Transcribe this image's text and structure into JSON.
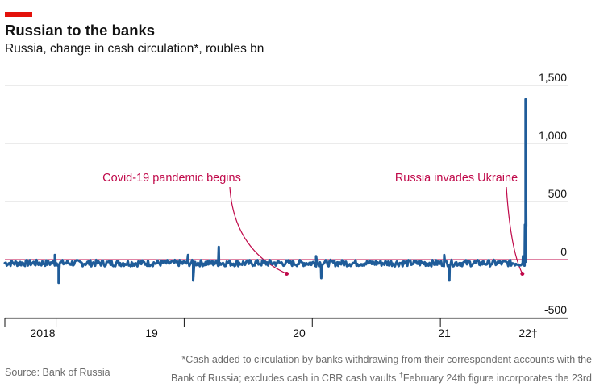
{
  "header": {
    "title": "Russian to the banks",
    "subtitle": "Russia, change in cash circulation*, roubles bn"
  },
  "footer": {
    "source": "Source: Bank of Russia",
    "footnote_line1": "*Cash added to circulation by banks withdrawing from their correspondent accounts with the",
    "footnote_line2a": "Bank of Russia; excludes cash in CBR cash vaults ",
    "footnote_dagger": "†",
    "footnote_line2b": "February 24th figure incorporates the 23rd"
  },
  "colors": {
    "line": "#1f5c99",
    "annotation": "#c0094a",
    "accent": "#e3120b"
  },
  "chart_data": {
    "type": "line",
    "title": "Russian to the banks",
    "subtitle": "Russia, change in cash circulation*, roubles bn",
    "xlabel": "",
    "ylabel": "roubles bn",
    "xlim": [
      2018.0,
      2022.4
    ],
    "ylim": [
      -500,
      1500
    ],
    "yticks": [
      -500,
      0,
      500,
      1000,
      1500
    ],
    "ytick_labels": [
      "-500",
      "0",
      "500",
      "1,000",
      "1,500"
    ],
    "xtick_labels": [
      {
        "x": 2018.0,
        "label": "2018"
      },
      {
        "x": 2019.0,
        "label": "19"
      },
      {
        "x": 2020.0,
        "label": "20"
      },
      {
        "x": 2021.0,
        "label": "21"
      },
      {
        "x": 2022.0,
        "label": "22†"
      }
    ],
    "grid": true,
    "series": [
      {
        "name": "Change in cash circulation",
        "baseline": -30,
        "noise_amplitude": 28,
        "spikes": [
          {
            "x": 2018.39,
            "y": 40
          },
          {
            "x": 2018.42,
            "y": -200
          },
          {
            "x": 2019.43,
            "y": 40
          },
          {
            "x": 2019.47,
            "y": -180
          },
          {
            "x": 2019.67,
            "y": 110
          },
          {
            "x": 2020.43,
            "y": 30
          },
          {
            "x": 2020.47,
            "y": -160
          },
          {
            "x": 2021.43,
            "y": 40
          },
          {
            "x": 2021.47,
            "y": -180
          },
          {
            "x": 2021.62,
            "y": -10
          },
          {
            "x": 2022.045,
            "y": 30
          },
          {
            "x": 2022.05,
            "y": -50
          },
          {
            "x": 2022.06,
            "y": 300
          },
          {
            "x": 2022.065,
            "y": 1380
          },
          {
            "x": 2022.07,
            "y": 290
          }
        ],
        "end_x": 2022.07
      }
    ],
    "annotations": [
      {
        "text": "Covid-19 pandemic begins",
        "x": 2020.2,
        "y": -80
      },
      {
        "text": "Russia invades Ukraine",
        "x": 2022.04,
        "y": -80
      }
    ]
  }
}
